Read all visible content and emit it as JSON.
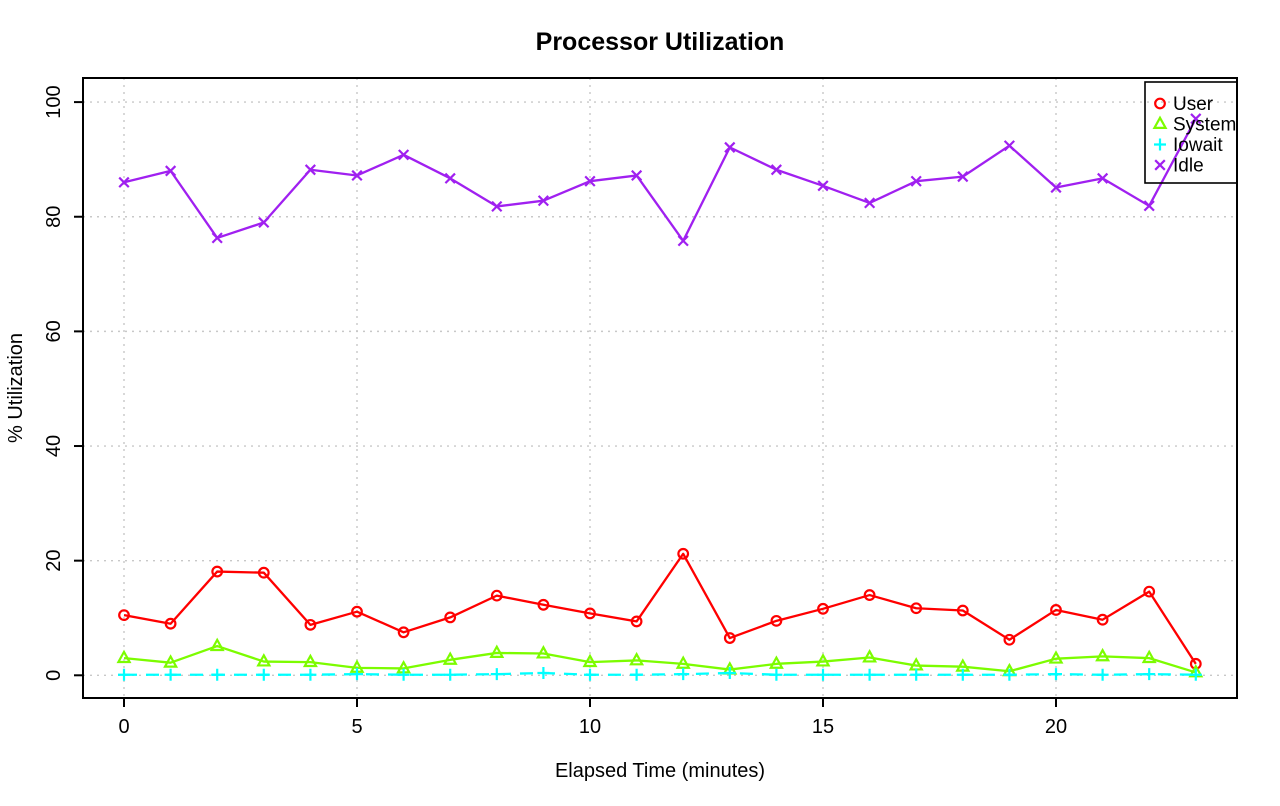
{
  "chart_data": {
    "type": "line",
    "title": "Processor Utilization",
    "xlabel": "Elapsed Time (minutes)",
    "ylabel": "% Utilization",
    "x": [
      0,
      1,
      2,
      3,
      4,
      5,
      6,
      7,
      8,
      9,
      10,
      11,
      12,
      13,
      14,
      15,
      16,
      17,
      18,
      19,
      20,
      21,
      22,
      23
    ],
    "series": [
      {
        "name": "User",
        "color": "#ff0000",
        "marker": "circle",
        "line": "solid",
        "values": [
          10.5,
          9.0,
          18.1,
          17.9,
          8.8,
          11.1,
          7.5,
          10.1,
          13.9,
          12.3,
          10.8,
          9.4,
          21.2,
          6.5,
          9.5,
          11.6,
          14.0,
          11.7,
          11.3,
          6.2,
          11.4,
          9.7,
          14.6,
          2.0
        ]
      },
      {
        "name": "System",
        "color": "#7cfc00",
        "marker": "triangle",
        "line": "solid",
        "values": [
          3.0,
          2.2,
          5.1,
          2.4,
          2.3,
          1.3,
          1.2,
          2.7,
          3.9,
          3.8,
          2.3,
          2.6,
          2.0,
          1.0,
          2.0,
          2.4,
          3.1,
          1.7,
          1.5,
          0.7,
          2.9,
          3.3,
          3.0,
          0.5
        ]
      },
      {
        "name": "Iowait",
        "color": "#00ffff",
        "marker": "plus",
        "line": "dashed",
        "values": [
          0.1,
          0.1,
          0.1,
          0.1,
          0.1,
          0.2,
          0.1,
          0.1,
          0.2,
          0.4,
          0.1,
          0.1,
          0.2,
          0.4,
          0.1,
          0.1,
          0.1,
          0.1,
          0.1,
          0.1,
          0.2,
          0.1,
          0.2,
          0.1
        ]
      },
      {
        "name": "Idle",
        "color": "#a020f0",
        "marker": "x",
        "line": "solid",
        "values": [
          86.0,
          88.0,
          76.3,
          79.0,
          88.2,
          87.2,
          90.8,
          86.7,
          81.8,
          82.8,
          86.2,
          87.2,
          75.8,
          92.1,
          88.2,
          85.4,
          82.4,
          86.2,
          87.0,
          92.4,
          85.1,
          86.7,
          81.9,
          97.1
        ]
      }
    ],
    "xlim": [
      0,
      23
    ],
    "ylim": [
      0,
      100
    ],
    "x_ticks": [
      0,
      5,
      10,
      15,
      20
    ],
    "y_ticks": [
      0,
      20,
      40,
      60,
      80,
      100
    ],
    "grid": true,
    "grid_style": "dotted",
    "legend_position": "top-right",
    "legend_items": [
      "User",
      "System",
      "Iowait",
      "Idle"
    ]
  },
  "colors": {
    "background": "#ffffff",
    "axis": "#000000",
    "grid": "#c8c8c8",
    "user": "#ff0000",
    "system": "#7cfc00",
    "iowait": "#00ffff",
    "idle": "#a020f0"
  }
}
